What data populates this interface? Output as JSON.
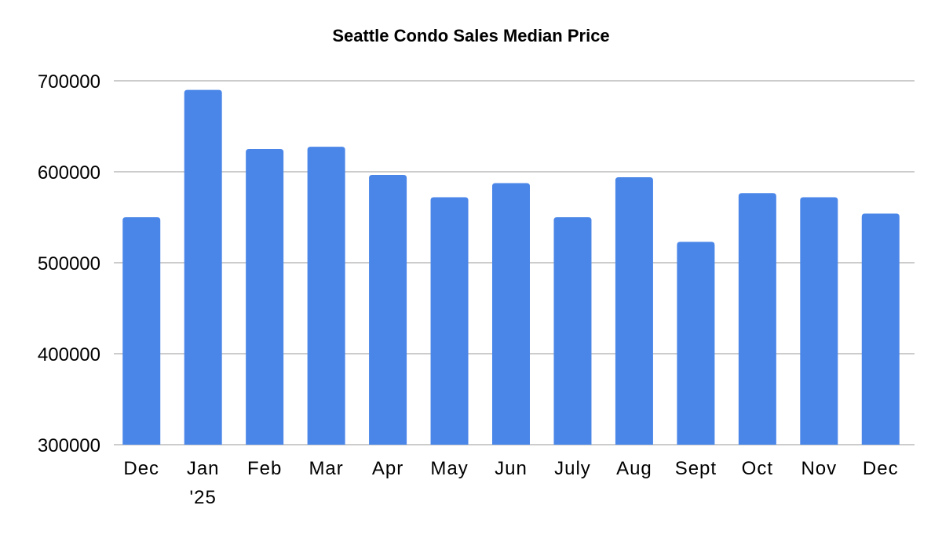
{
  "chart_data": {
    "type": "bar",
    "title": "Seattle Condo Sales Median Price",
    "xlabel": "",
    "ylabel": "",
    "categories": [
      "Dec",
      "Jan\n'25",
      "Feb",
      "Mar",
      "Apr",
      "May",
      "Jun",
      "July",
      "Aug",
      "Sept",
      "Oct",
      "Nov",
      "Dec"
    ],
    "values": [
      550000,
      690000,
      625000,
      627500,
      596500,
      572000,
      587500,
      550000,
      594000,
      523000,
      576500,
      572000,
      554000
    ],
    "ylim": [
      300000,
      700000
    ],
    "yticks": [
      300000,
      400000,
      500000,
      600000,
      700000
    ],
    "grid": true,
    "legend": "none",
    "bar_color": "#4a86e8",
    "grid_color": "#cccccc"
  }
}
